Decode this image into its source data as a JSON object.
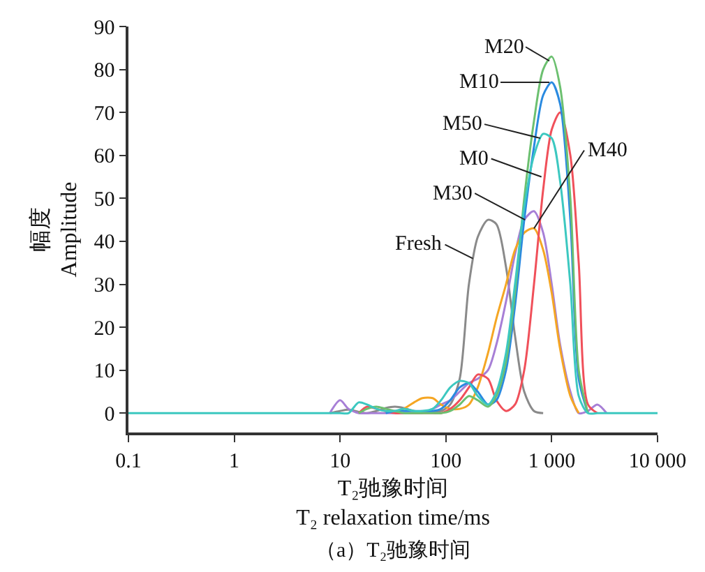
{
  "chart_data": {
    "type": "line",
    "xlabel": "T₂驰豫时间\nT₂ relaxation time/ms",
    "ylabel": "幅度\nAmplitude",
    "log": "x",
    "x": [
      0.1,
      5,
      8,
      10,
      12,
      15,
      18,
      22,
      27,
      33,
      40,
      50,
      60,
      75,
      90,
      110,
      135,
      165,
      200,
      250,
      300,
      370,
      450,
      550,
      680,
      830,
      1000,
      1200,
      1500,
      1800,
      2200,
      2700,
      3300,
      10000
    ],
    "series": [
      {
        "color": "#8a8a8a",
        "values": [
          null,
          null,
          0,
          0.5,
          0.8,
          0.3,
          0,
          0.5,
          1.2,
          1.5,
          1.2,
          0.5,
          0.2,
          0.3,
          0.5,
          2,
          8,
          30,
          41,
          45,
          44,
          34,
          18,
          5,
          0.5,
          0,
          null,
          null,
          null,
          null,
          null,
          null,
          null,
          null
        ]
      },
      {
        "color": "#a77fd6",
        "values": [
          null,
          null,
          0,
          3,
          1,
          0,
          0,
          0,
          0,
          0,
          0,
          0,
          0,
          1,
          2,
          3,
          5,
          7,
          8,
          10,
          16,
          26,
          37,
          45,
          47,
          42,
          30,
          16,
          5,
          0,
          0.5,
          2,
          0,
          null
        ]
      },
      {
        "color": "#f5a623",
        "values": [
          null,
          null,
          null,
          null,
          null,
          null,
          null,
          null,
          null,
          0,
          1,
          2.5,
          3.5,
          3.5,
          2,
          1,
          1,
          2,
          6,
          14,
          22,
          30,
          38,
          42,
          43,
          38,
          28,
          15,
          4,
          0,
          null,
          null,
          null,
          null
        ]
      },
      {
        "color": "#f0505a",
        "values": [
          null,
          null,
          null,
          null,
          null,
          0,
          1.5,
          1,
          0.5,
          0,
          0,
          0,
          0,
          0,
          0,
          1,
          3,
          6,
          9,
          8,
          3,
          0.5,
          2,
          10,
          30,
          52,
          66,
          70,
          60,
          35,
          2,
          0,
          null,
          null
        ]
      },
      {
        "color": "#2a8ae0",
        "values": [
          null,
          null,
          null,
          null,
          null,
          null,
          null,
          null,
          0,
          0.5,
          0.5,
          0.5,
          0.5,
          0.5,
          1,
          3,
          6,
          7,
          5,
          2,
          3,
          10,
          25,
          45,
          62,
          74,
          77,
          72,
          45,
          8,
          0,
          null,
          null,
          null
        ]
      },
      {
        "color": "#6cc070",
        "values": [
          null,
          null,
          null,
          null,
          null,
          0,
          1,
          1.5,
          1,
          0.5,
          0,
          0,
          0,
          0,
          0,
          0.5,
          2,
          4,
          3,
          1.5,
          4,
          12,
          28,
          50,
          68,
          80,
          83,
          76,
          50,
          10,
          0,
          null,
          null,
          null
        ]
      },
      {
        "color": "#3cc8c0",
        "values": [
          0,
          0,
          0,
          0,
          0,
          2.5,
          2,
          1,
          0.5,
          0.5,
          1,
          0.5,
          0.5,
          1,
          3,
          6,
          7.5,
          7,
          4,
          2,
          5,
          14,
          30,
          48,
          60,
          65,
          64,
          54,
          30,
          4,
          0,
          0,
          0,
          0
        ]
      }
    ],
    "xlim": [
      0.1,
      10000
    ],
    "xticks": [
      0.1,
      1,
      10,
      100,
      {
        "value": 1000,
        "label": "1 000"
      },
      {
        "value": 10000,
        "label": "10 000"
      }
    ],
    "ylim": [
      -4.5,
      90
    ],
    "yticks": [
      0,
      10,
      20,
      30,
      40,
      50,
      60,
      70,
      80,
      90
    ],
    "marker": "none",
    "line_style": "solid",
    "annotations": [
      {
        "text": "M20",
        "x": 950,
        "y": 82
      },
      {
        "text": "M10",
        "x": 950,
        "y": 77
      },
      {
        "text": "M50",
        "x": 780,
        "y": 64
      },
      {
        "text": "M0",
        "x": 800,
        "y": 55
      },
      {
        "text": "M30",
        "x": 560,
        "y": 45
      },
      {
        "text": "M40",
        "x": 680,
        "y": 43
      },
      {
        "text": "Fresh",
        "x": 180,
        "y": 36
      },
      "（a）T₂驰豫时间"
    ]
  }
}
